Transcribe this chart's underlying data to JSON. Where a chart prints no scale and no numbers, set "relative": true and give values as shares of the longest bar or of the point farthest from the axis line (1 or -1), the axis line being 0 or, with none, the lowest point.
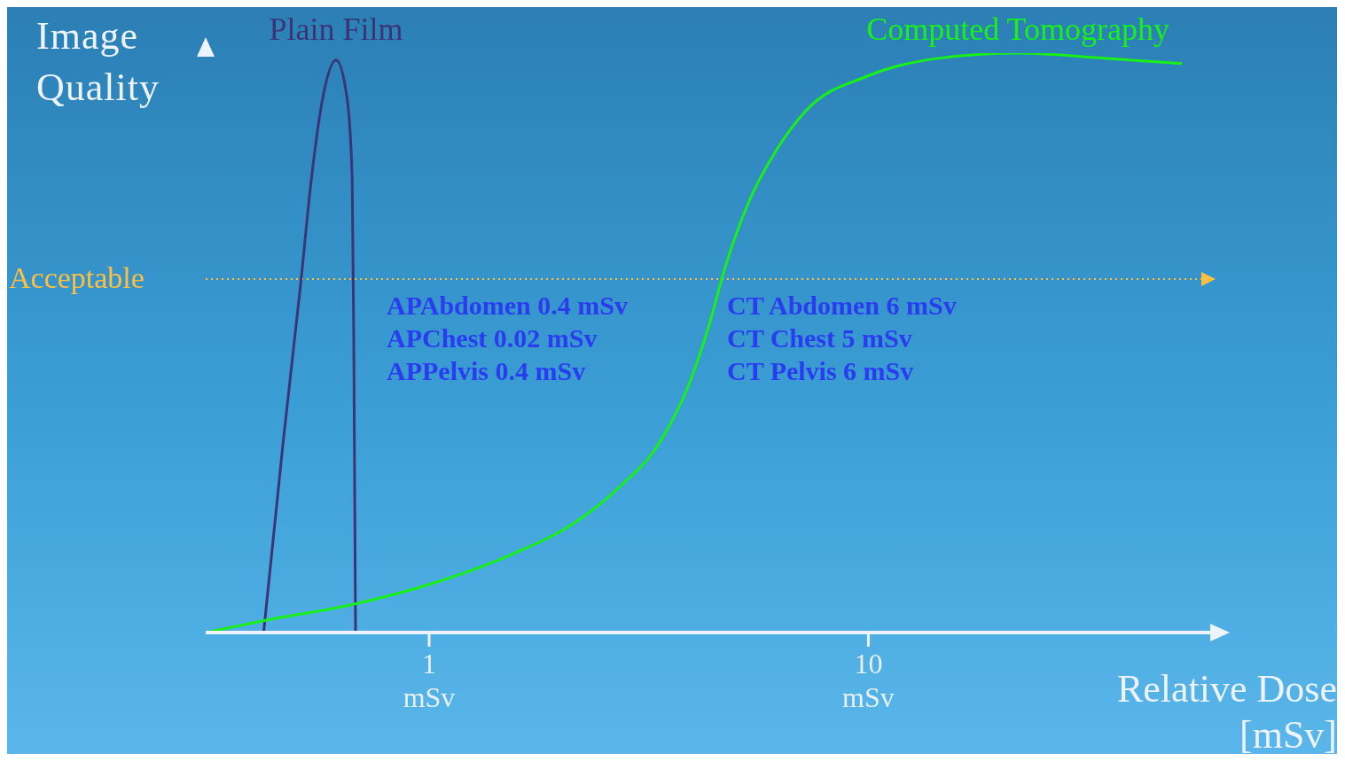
{
  "chart_data": {
    "type": "line",
    "relative": true,
    "log": "x",
    "xlim": [
      0.31,
      60
    ],
    "xticks": [
      {
        "value": 1,
        "label": "1 mSv"
      },
      {
        "value": 10,
        "label": "10 mSv"
      }
    ],
    "xlabel": "Relative Dose [mSv]",
    "ylabel": "Image Quality",
    "marker": "none",
    "line_style": "solid",
    "series": [
      {
        "name": "Plain Film",
        "color": "#3b3477",
        "x": [
          0.42,
          0.465,
          0.51,
          0.54,
          0.573,
          0.614,
          0.65,
          0.668,
          0.674,
          0.68
        ],
        "values": [
          0,
          0.327,
          0.602,
          0.786,
          0.924,
          0.988,
          0.924,
          0.786,
          0.48,
          0
        ]
      },
      {
        "name": "Computed Tomography",
        "color": "#19f019",
        "x": [
          0.31,
          0.424,
          0.674,
          1,
          1.554,
          2.15,
          2.71,
          3.34,
          3.93,
          4.32,
          4.73,
          5.32,
          6.25,
          7.19,
          10,
          14.4,
          21.9,
          34.9,
          51.7
        ],
        "values": [
          0,
          0.021,
          0.049,
          0.083,
          0.136,
          0.19,
          0.251,
          0.327,
          0.434,
          0.526,
          0.633,
          0.74,
          0.839,
          0.9,
          0.961,
          0.991,
          1,
          0.991,
          0.982
        ]
      }
    ],
    "ref_lines": [
      {
        "axis": "y",
        "value": 0.61,
        "label": "Acceptable",
        "color": "#ffc040",
        "line_style": "dotted"
      }
    ],
    "annotations": [
      "APAbdomen 0.4 mSv",
      "APChest 0.02 mSv",
      "APPelvis 0.4 mSv",
      "CT Abdomen 6 mSv",
      "CT Chest 5 mSv",
      "CT Pelvis 6 mSv"
    ]
  }
}
